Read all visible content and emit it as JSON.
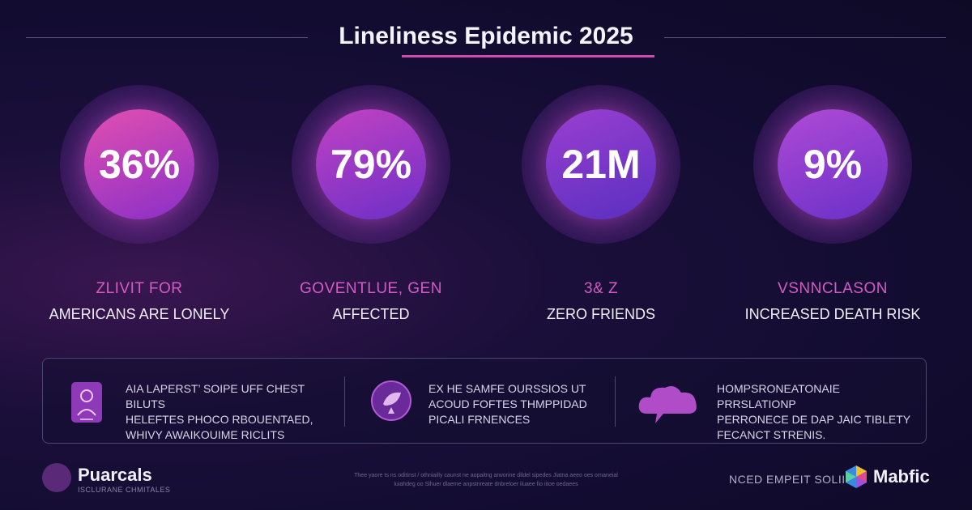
{
  "header": {
    "title": "Lineliness Epidemic 2025"
  },
  "stats": [
    {
      "value": "36%",
      "sub_label": "ZLIVIT FOR",
      "label": "AMERICANS ARE LONELY",
      "color_top": "#e24fb0",
      "color_bottom": "#8a2fc8"
    },
    {
      "value": "79%",
      "sub_label": "GOVENTLUE, GEN",
      "label": "AFFECTED",
      "color_top": "#c242c2",
      "color_bottom": "#6d2fc8"
    },
    {
      "value": "21M",
      "sub_label": "3& Z",
      "label": "ZERO FRIENDS",
      "color_top": "#9a3fd0",
      "color_bottom": "#5a2fc0"
    },
    {
      "value": "9%",
      "sub_label": "VSNNCLASON",
      "label": "INCREASED DEATH RISK",
      "color_top": "#b04ad6",
      "color_bottom": "#6a30c8"
    }
  ],
  "panel": {
    "items": [
      {
        "icon": "person-profile-icon",
        "lines": [
          "AIA LAPERST’ SOIPE UFF CHEST BILUTS",
          "HELEFTES PHOCO RBOUENTAED,",
          "WHIVY AWAIKOUIME RICLITS"
        ]
      },
      {
        "icon": "leaf-badge-icon",
        "lines": [
          "EX HE SAMFE OURSSIOS UT",
          "ACOUD FOFTES THMPPIDAD",
          "PICALI FRNENCES"
        ]
      },
      {
        "icon": "chat-cloud-icon",
        "lines": [
          "HOMPSRONEATONAIE PRRSLATIONP",
          "PERRONECE DE DAP JAIC TIBLETY",
          "FECANCT STRENIS."
        ]
      }
    ]
  },
  "footer": {
    "brand_left_name": "Puarcals",
    "brand_left_tagline": "ISCLURANE CHMITALES",
    "footnote_lines": [
      "Thee yaore ts ns oditinst / othniailly caunst ne aopaitng arworine dildel sipedes Jiatna aeeo oes ornaneial",
      "luiahdeg oo Slhuer dlaeme anpstnreate dnbreloer iluaee fio iitoe oedaees"
    ],
    "cta": "NCED EMPEIT SOLII",
    "brand_right_name": "Mabfic",
    "accent": "#d04bb0"
  }
}
